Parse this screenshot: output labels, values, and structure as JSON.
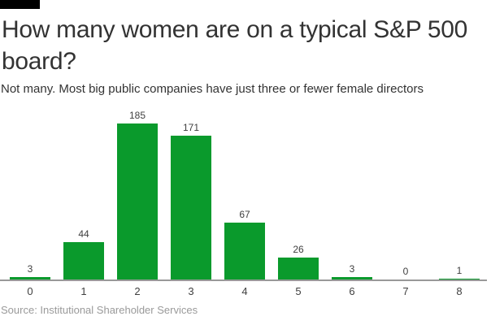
{
  "header": {
    "title": "How many women are on a typical S&P 500 board?",
    "subtitle": "Not many. Most big public companies have just three or fewer female directors"
  },
  "footer": {
    "source": "Source: Institutional Shareholder Services"
  },
  "colors": {
    "bar": "#0a9a2c",
    "axis": "#999999",
    "value_label": "#404040",
    "tick_label": "#404040",
    "source_text": "#9a9a9a",
    "brand_tag": "#000000"
  },
  "chart_data": {
    "type": "bar",
    "title": "How many women are on a typical S&P 500 board?",
    "subtitle": "Not many. Most big public companies have just three or fewer female directors",
    "categories": [
      "0",
      "1",
      "2",
      "3",
      "4",
      "5",
      "6",
      "7",
      "8"
    ],
    "values": [
      3,
      44,
      185,
      171,
      67,
      26,
      3,
      0,
      1
    ],
    "xlabel": "",
    "ylabel": "",
    "ylim": [
      0,
      185
    ],
    "grid": false,
    "legend": false,
    "value_labels": true,
    "bar_color": "#0a9a2c",
    "source": "Source: Institutional Shareholder Services"
  }
}
